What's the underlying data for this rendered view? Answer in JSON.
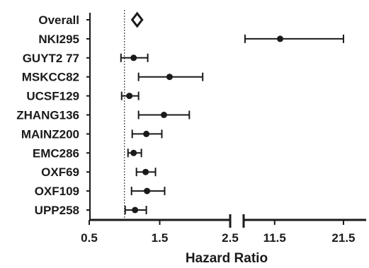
{
  "chart_data": {
    "type": "forest",
    "xlabel": "Hazard Ratio",
    "reference_line": 1,
    "panels": [
      {
        "xlim": [
          0.5,
          2.5
        ],
        "ticks": [
          "0.5",
          "1.5",
          "2.5"
        ]
      },
      {
        "xlim": [
          7.0,
          25.0
        ],
        "ticks": [
          "11.5",
          "21.5"
        ]
      }
    ],
    "rows": [
      {
        "label": "Overall",
        "hr": 1.18,
        "lo": 1.12,
        "hi": 1.25,
        "marker": "diamond"
      },
      {
        "label": "NKI295",
        "hr": 12.3,
        "lo": 7.2,
        "hi": 21.5,
        "marker": "circle"
      },
      {
        "label": "GUYT2 77",
        "hr": 1.13,
        "lo": 0.95,
        "hi": 1.33,
        "marker": "circle"
      },
      {
        "label": "MSKCC82",
        "hr": 1.64,
        "lo": 1.2,
        "hi": 2.11,
        "marker": "circle"
      },
      {
        "label": "UCSF129",
        "hr": 1.07,
        "lo": 0.96,
        "hi": 1.2,
        "marker": "circle"
      },
      {
        "label": "ZHANG136",
        "hr": 1.56,
        "lo": 1.2,
        "hi": 1.92,
        "marker": "circle"
      },
      {
        "label": "MAINZ200",
        "hr": 1.31,
        "lo": 1.11,
        "hi": 1.53,
        "marker": "circle"
      },
      {
        "label": "EMC286",
        "hr": 1.13,
        "lo": 1.05,
        "hi": 1.24,
        "marker": "circle"
      },
      {
        "label": "OXF69",
        "hr": 1.3,
        "lo": 1.17,
        "hi": 1.44,
        "marker": "circle"
      },
      {
        "label": "OXF109",
        "hr": 1.32,
        "lo": 1.1,
        "hi": 1.57,
        "marker": "circle"
      },
      {
        "label": "UPP258",
        "hr": 1.15,
        "lo": 1.01,
        "hi": 1.31,
        "marker": "circle"
      }
    ]
  }
}
